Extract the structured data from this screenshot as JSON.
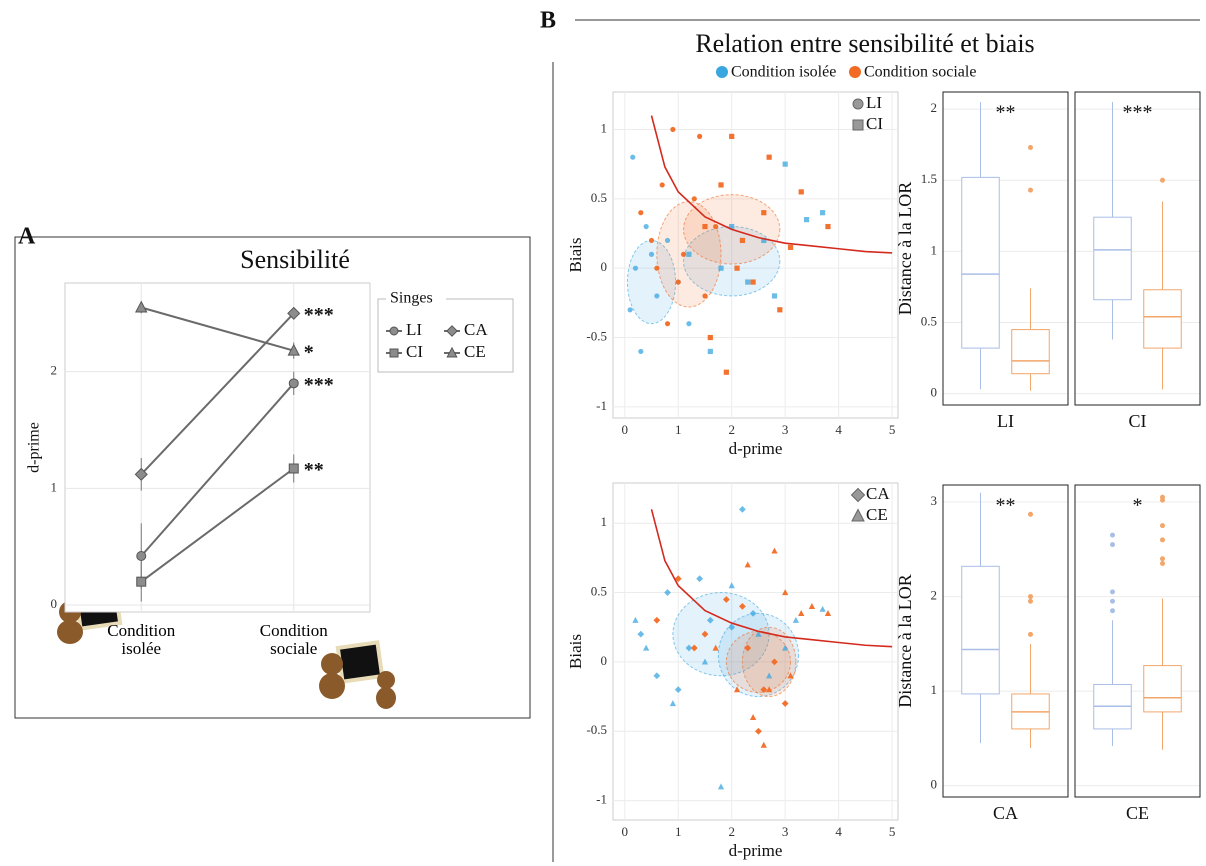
{
  "chart_data": [
    {
      "type": "line",
      "label": "A",
      "title": "Sensibilité",
      "y_label": "d-prime",
      "categories": [
        "Condition isolée",
        "Condition sociale"
      ],
      "ylim": [
        -0.06,
        2.76
      ],
      "yticks": [
        0,
        1,
        2
      ],
      "grid": true,
      "legend_title": "Singes",
      "star_color": "#ee3b24",
      "series": [
        {
          "name": "LI",
          "shape": "circle",
          "color": "#8c8c8c",
          "values": [
            0.42,
            1.9
          ],
          "errors": [
            0.28,
            0.1
          ],
          "stars": "***"
        },
        {
          "name": "CI",
          "shape": "square",
          "color": "#8c8c8c",
          "values": [
            0.2,
            1.17
          ],
          "errors": [
            0.17,
            0.12
          ],
          "stars": "**"
        },
        {
          "name": "CA",
          "shape": "diamond",
          "color": "#8c8c8c",
          "values": [
            1.12,
            2.5
          ],
          "errors": [
            0.14,
            0.04
          ],
          "stars": "***"
        },
        {
          "name": "CE",
          "shape": "triangle",
          "color": "#8c8c8c",
          "values": [
            2.55,
            2.18
          ],
          "errors": [
            0.05,
            0.07
          ],
          "stars": "*"
        }
      ]
    },
    {
      "type": "scatter",
      "label": "B",
      "title": "Relation entre sensibilité et biais",
      "legend": [
        {
          "name": "Condition isolée",
          "color": "#3aa6e0"
        },
        {
          "name": "Condition sociale",
          "color": "#f26a24"
        }
      ],
      "x_label": "d-prime",
      "y_label": "Biais",
      "xlim": [
        -0.22,
        5.11
      ],
      "xticks": [
        0,
        1,
        2,
        3,
        4,
        5
      ],
      "ylim": [
        -1.08,
        1.27
      ],
      "yticks": [
        -1,
        -0.5,
        0,
        0.5,
        1
      ],
      "grid": true,
      "curve": {
        "color": "#d42a1e",
        "x": [
          0.5,
          0.75,
          1,
          1.5,
          2,
          2.5,
          3,
          3.5,
          4,
          4.5,
          5
        ],
        "y": [
          1.1,
          0.73,
          0.55,
          0.37,
          0.28,
          0.22,
          0.18,
          0.16,
          0.14,
          0.12,
          0.11
        ]
      },
      "series": [
        {
          "name": "LI",
          "shape": "circle",
          "isolated": {
            "x": [
              0.1,
              0.2,
              0.3,
              0.5,
              0.6,
              0.8,
              1.0,
              0.4,
              0.15,
              1.2
            ],
            "y": [
              -0.3,
              0.0,
              -0.6,
              0.1,
              -0.2,
              0.2,
              -0.1,
              0.3,
              0.8,
              -0.4
            ],
            "ellipse": {
              "cx": 0.5,
              "cy": -0.1,
              "rx": 0.45,
              "ry": 0.3
            }
          },
          "social": {
            "x": [
              0.3,
              0.5,
              0.7,
              0.9,
              1.1,
              1.3,
              1.5,
              0.8,
              1.7,
              0.6,
              1.4,
              1.0
            ],
            "y": [
              0.4,
              0.2,
              0.6,
              1.0,
              0.1,
              0.5,
              -0.2,
              -0.4,
              0.3,
              0.0,
              0.95,
              -0.1
            ],
            "ellipse": {
              "cx": 1.2,
              "cy": 0.1,
              "rx": 0.6,
              "ry": 0.38
            }
          }
        },
        {
          "name": "CI",
          "shape": "square",
          "isolated": {
            "x": [
              1.2,
              1.6,
              2.0,
              2.3,
              2.6,
              3.0,
              3.4,
              3.7,
              1.8,
              2.8
            ],
            "y": [
              0.1,
              -0.6,
              0.3,
              -0.1,
              0.2,
              0.75,
              0.35,
              0.4,
              0.0,
              -0.2
            ],
            "ellipse": {
              "cx": 2.0,
              "cy": 0.05,
              "rx": 0.9,
              "ry": 0.25
            }
          },
          "social": {
            "x": [
              1.5,
              1.8,
              2.0,
              2.2,
              2.4,
              2.6,
              2.9,
              3.1,
              3.3,
              1.6,
              2.1,
              2.7,
              3.8,
              1.9
            ],
            "y": [
              0.3,
              0.6,
              0.95,
              0.2,
              -0.1,
              0.4,
              -0.3,
              0.15,
              0.55,
              -0.5,
              0.0,
              0.8,
              0.3,
              -0.75
            ],
            "ellipse": {
              "cx": 2.0,
              "cy": 0.28,
              "rx": 0.9,
              "ry": 0.25
            }
          }
        }
      ]
    },
    {
      "type": "box",
      "y_label": "Distance à la LOR",
      "ylim": [
        -0.08,
        2.12
      ],
      "yticks": [
        0,
        0.5,
        1,
        1.5,
        2
      ],
      "grid": true,
      "box_colors": [
        "#a9bee6",
        "#f2a66a"
      ],
      "star_color": "#ee3b24",
      "facets": [
        {
          "name": "LI",
          "stars": "**",
          "boxes": [
            {
              "min": 0.03,
              "q1": 0.32,
              "median": 0.84,
              "q3": 1.52,
              "max": 2.05,
              "outliers": []
            },
            {
              "min": 0.02,
              "q1": 0.14,
              "median": 0.23,
              "q3": 0.45,
              "max": 0.74,
              "outliers": [
                1.43,
                1.73
              ]
            }
          ]
        },
        {
          "name": "CI",
          "stars": "***",
          "boxes": [
            {
              "min": 0.38,
              "q1": 0.66,
              "median": 1.01,
              "q3": 1.24,
              "max": 2.05,
              "outliers": []
            },
            {
              "min": 0.03,
              "q1": 0.32,
              "median": 0.54,
              "q3": 0.73,
              "max": 1.35,
              "outliers": [
                1.5
              ]
            }
          ]
        }
      ]
    },
    {
      "type": "scatter",
      "x_label": "d-prime",
      "y_label": "Biais",
      "xlim": [
        -0.22,
        5.11
      ],
      "xticks": [
        0,
        1,
        2,
        3,
        4,
        5
      ],
      "ylim": [
        -1.14,
        1.29
      ],
      "yticks": [
        -1,
        -0.5,
        0,
        0.5,
        1
      ],
      "grid": true,
      "curve": {
        "color": "#d42a1e",
        "x": [
          0.5,
          0.75,
          1,
          1.5,
          2,
          2.5,
          3,
          3.5,
          4,
          4.5,
          5
        ],
        "y": [
          1.1,
          0.73,
          0.55,
          0.37,
          0.28,
          0.22,
          0.18,
          0.16,
          0.14,
          0.12,
          0.11
        ]
      },
      "series": [
        {
          "name": "CA",
          "shape": "diamond",
          "isolated": {
            "x": [
              0.3,
              0.8,
              1.2,
              1.6,
              2.0,
              2.4,
              1.0,
              1.4,
              2.2,
              0.6
            ],
            "y": [
              0.2,
              0.5,
              0.1,
              0.3,
              0.25,
              0.35,
              -0.2,
              0.6,
              1.1,
              -0.1
            ],
            "ellipse": {
              "cx": 1.8,
              "cy": 0.2,
              "rx": 0.9,
              "ry": 0.3
            }
          },
          "social": {
            "x": [
              0.6,
              1.0,
              1.5,
              1.9,
              2.3,
              2.6,
              2.8,
              3.0,
              2.5,
              2.2,
              1.3
            ],
            "y": [
              0.3,
              0.6,
              0.2,
              0.45,
              0.1,
              -0.2,
              0.0,
              -0.3,
              -0.5,
              0.4,
              0.1
            ],
            "ellipse": {
              "cx": 2.5,
              "cy": 0.0,
              "rx": 0.6,
              "ry": 0.22
            }
          }
        },
        {
          "name": "CE",
          "shape": "triangle",
          "isolated": {
            "x": [
              0.4,
              0.9,
              1.5,
              2.0,
              2.5,
              3.0,
              3.2,
              2.7,
              1.8,
              3.7,
              0.2
            ],
            "y": [
              0.1,
              -0.3,
              0.0,
              0.55,
              0.2,
              0.1,
              0.3,
              -0.1,
              -0.9,
              0.38,
              0.3
            ],
            "ellipse": {
              "cx": 2.5,
              "cy": 0.05,
              "rx": 0.75,
              "ry": 0.3
            }
          },
          "social": {
            "x": [
              1.7,
              2.1,
              2.4,
              2.6,
              2.8,
              3.0,
              3.3,
              3.5,
              2.7,
              2.3,
              3.8,
              3.1
            ],
            "y": [
              0.1,
              -0.2,
              -0.4,
              -0.6,
              0.8,
              0.5,
              0.35,
              0.4,
              -0.2,
              0.7,
              0.35,
              -0.1
            ],
            "ellipse": {
              "cx": 2.7,
              "cy": 0.0,
              "rx": 0.5,
              "ry": 0.25
            }
          }
        }
      ]
    },
    {
      "type": "box",
      "y_label": "Distance à la LOR",
      "ylim": [
        -0.12,
        3.18
      ],
      "yticks": [
        0,
        1,
        2,
        3
      ],
      "grid": true,
      "box_colors": [
        "#a9bee6",
        "#f2a66a"
      ],
      "star_color": "#ee3b24",
      "facets": [
        {
          "name": "CA",
          "stars": "**",
          "boxes": [
            {
              "min": 0.45,
              "q1": 0.97,
              "median": 1.44,
              "q3": 2.32,
              "max": 3.1,
              "outliers": []
            },
            {
              "min": 0.4,
              "q1": 0.6,
              "median": 0.78,
              "q3": 0.97,
              "max": 1.5,
              "outliers": [
                1.6,
                1.95,
                2.0,
                2.87
              ]
            }
          ]
        },
        {
          "name": "CE",
          "stars": "*",
          "boxes": [
            {
              "min": 0.42,
              "q1": 0.6,
              "median": 0.84,
              "q3": 1.07,
              "max": 1.75,
              "outliers": [
                1.85,
                1.95,
                2.05,
                2.55,
                2.65
              ]
            },
            {
              "min": 0.38,
              "q1": 0.78,
              "median": 0.93,
              "q3": 1.27,
              "max": 1.98,
              "outliers": [
                2.35,
                2.4,
                2.6,
                2.75,
                3.02,
                3.05
              ]
            }
          ]
        }
      ]
    }
  ]
}
